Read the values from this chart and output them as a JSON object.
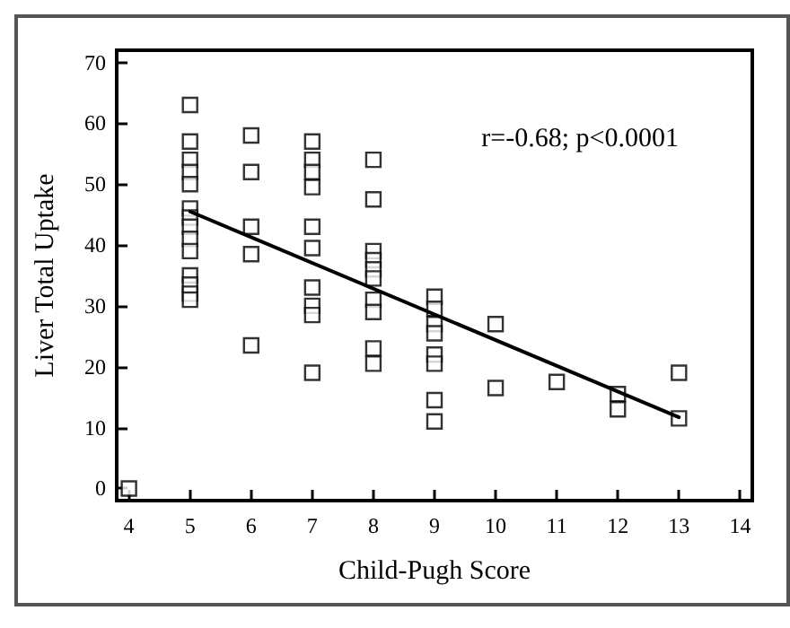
{
  "chart_data": {
    "type": "scatter",
    "xlabel": "Child-Pugh Score",
    "ylabel": "Liver Total Uptake",
    "annotations": [
      "r=-0.68; p<0.0001"
    ],
    "xlim": [
      3.8,
      14.2
    ],
    "xticks": [
      4,
      5,
      6,
      7,
      8,
      9,
      10,
      11,
      12,
      13,
      14
    ],
    "ylim": [
      -2,
      72
    ],
    "yticks": [
      0,
      10,
      20,
      30,
      40,
      50,
      60,
      70
    ],
    "grid": false,
    "series": [
      {
        "color": "#000000",
        "marker": "square",
        "x": [
          4,
          5,
          5,
          5,
          5,
          5,
          5,
          5,
          5,
          5,
          5,
          5,
          5,
          5,
          5,
          6,
          6,
          6,
          6,
          6,
          7,
          7,
          7,
          7,
          7,
          7,
          7,
          7,
          7,
          7,
          8,
          8,
          8,
          8,
          8,
          8,
          8,
          8,
          8,
          8,
          9,
          9,
          9,
          9,
          9,
          9,
          9,
          9,
          10,
          10,
          11,
          12,
          12,
          13,
          13
        ],
        "values": [
          0,
          63,
          57,
          54,
          52,
          50,
          46,
          44.5,
          43,
          41,
          39,
          35,
          33.5,
          32,
          31,
          58,
          52,
          43,
          38.5,
          23.5,
          57,
          54,
          52,
          49.5,
          43,
          39.5,
          33,
          30,
          28.5,
          19,
          54,
          47.5,
          39,
          37.5,
          36,
          34.5,
          31,
          29,
          23,
          20.5,
          31.5,
          29.5,
          27,
          25.5,
          22,
          20.5,
          14.5,
          11,
          27,
          16.5,
          17.5,
          15.5,
          13,
          19,
          11.5
        ]
      },
      {
        "type": "line",
        "color": "#000000",
        "marker": "none",
        "line_style": "solid",
        "x": [
          5,
          13
        ],
        "values": [
          45.5,
          11.7
        ]
      }
    ]
  }
}
